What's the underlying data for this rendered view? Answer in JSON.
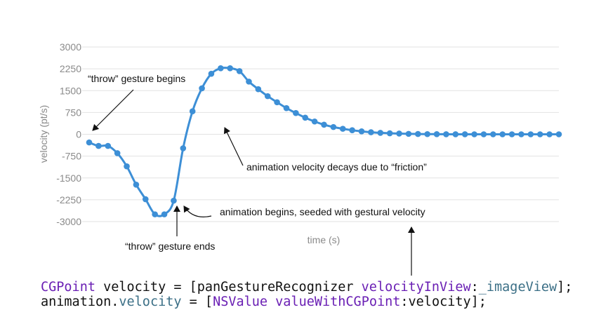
{
  "chart_data": {
    "type": "line",
    "xlabel": "time (s)",
    "ylabel": "velocity (pt/s)",
    "ylim": [
      -3000,
      3000
    ],
    "yticks": [
      3000,
      2250,
      1500,
      750,
      0,
      -750,
      -1500,
      -2250,
      -3000
    ],
    "grid": true,
    "series": [
      {
        "color": "#3d8fd6",
        "values": [
          -280,
          -400,
          -400,
          -650,
          -1100,
          -1730,
          -2230,
          -2750,
          -2750,
          -2280,
          -480,
          790,
          1580,
          2080,
          2270,
          2270,
          2170,
          1810,
          1550,
          1310,
          1100,
          900,
          730,
          570,
          440,
          330,
          250,
          190,
          140,
          100,
          70,
          50,
          35,
          25,
          15,
          10,
          6,
          4,
          2,
          1,
          1,
          0,
          0,
          0,
          0,
          0,
          0,
          0,
          0,
          0,
          0
        ]
      }
    ],
    "annotations": [
      {
        "text": "“throw”  gesture begins"
      },
      {
        "text": "animation velocity decays due to “friction”"
      },
      {
        "text": "animation begins, seeded with gestural velocity"
      },
      {
        "text": "“throw”  gesture ends"
      }
    ]
  },
  "code": {
    "line1": {
      "type": "CGPoint",
      "mid": " velocity = [panGestureRecognizer ",
      "method": "velocityInView",
      "colon": ":",
      "ivar": "_imageView",
      "end": "];"
    },
    "line2": {
      "obj": "animation.",
      "prop": "velocity",
      "mid": " = [",
      "cls": "NSValue",
      "sp": " ",
      "method": "valueWithCGPoint",
      "end": ":velocity];"
    }
  }
}
